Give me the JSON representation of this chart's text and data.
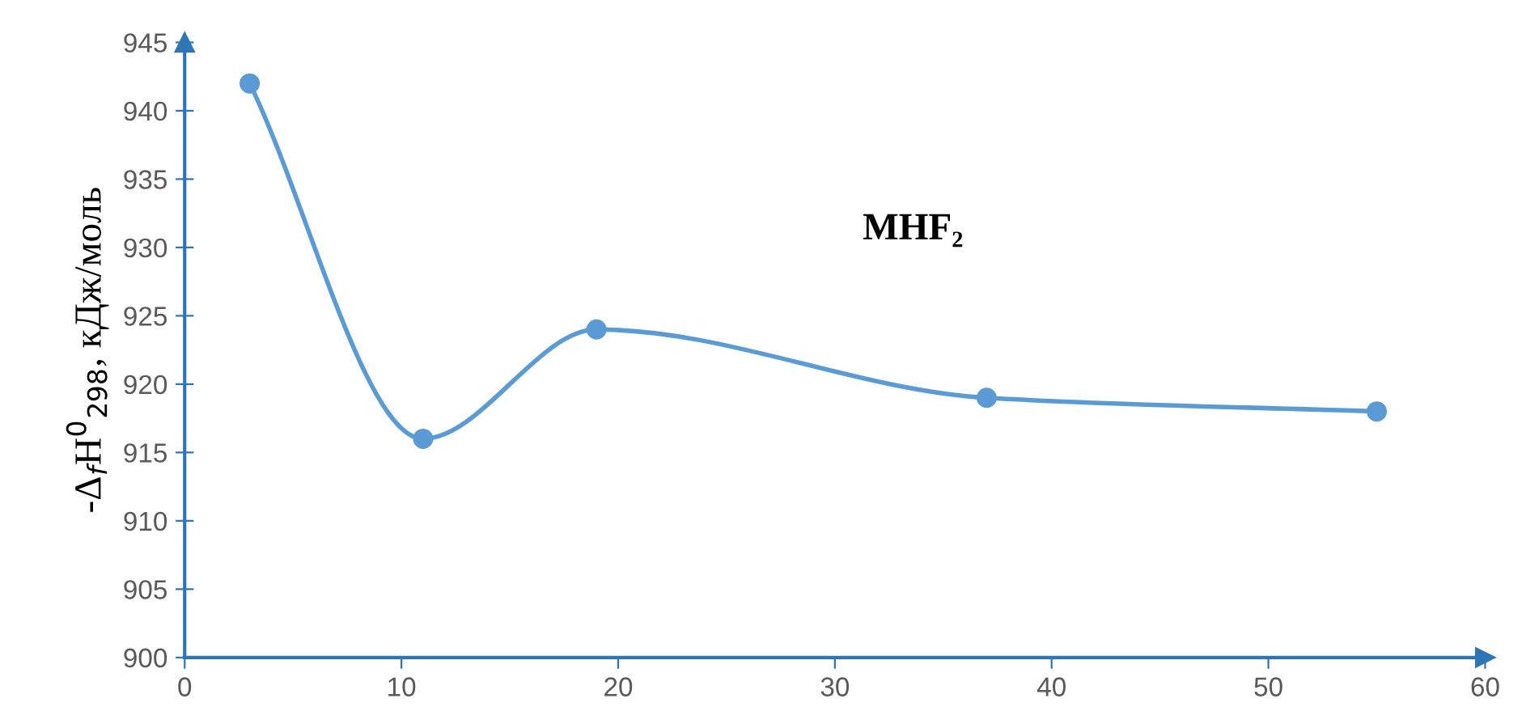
{
  "chart_data": {
    "type": "line",
    "ylabel": "-Δ$_{f}$H$^{0}$$_{298}$, кДж/моль",
    "annotations": [
      "MHF₂"
    ],
    "x": [
      3,
      11,
      19,
      37,
      55
    ],
    "series": [
      {
        "color": "#5b9bd5",
        "values": [
          942,
          916,
          924,
          919,
          918
        ]
      }
    ],
    "xlim": [
      0,
      60
    ],
    "xticks": [
      0,
      10,
      20,
      30,
      40,
      50,
      60
    ],
    "ylim": [
      900,
      945
    ],
    "yticks": [
      900,
      905,
      910,
      915,
      920,
      925,
      930,
      935,
      940,
      945
    ],
    "marker": "circle",
    "line_style": "solid",
    "grid": false,
    "legend": false
  }
}
